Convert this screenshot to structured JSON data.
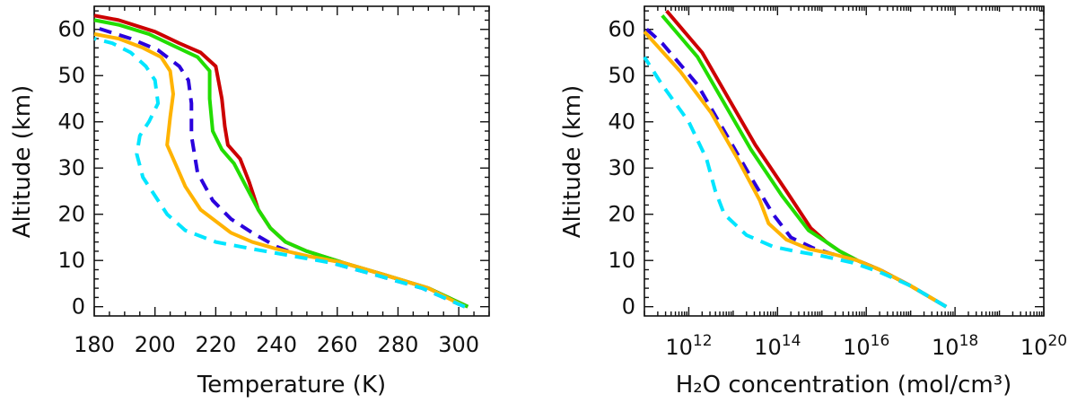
{
  "chart_data": [
    {
      "type": "line",
      "xlabel": "Temperature (K)",
      "ylabel": "Altitude (km)",
      "xscale": "linear",
      "xlim": [
        180,
        310
      ],
      "ylim": [
        -2,
        65
      ],
      "xticks": [
        180,
        200,
        220,
        240,
        260,
        280,
        300
      ],
      "xtick_labels": [
        "180",
        "200",
        "220",
        "240",
        "260",
        "280",
        "300"
      ],
      "yticks": [
        0,
        10,
        20,
        30,
        40,
        50,
        60
      ],
      "ytick_labels": [
        "0",
        "10",
        "20",
        "30",
        "40",
        "50",
        "60"
      ],
      "series": [
        {
          "name": "red",
          "color": "#cc0000",
          "style": "solid",
          "x": [
            303,
            290,
            275,
            262,
            250,
            243,
            238,
            234,
            231,
            228,
            224,
            223,
            222,
            220,
            215,
            208,
            200,
            188,
            180
          ],
          "y": [
            0,
            4,
            7,
            9.5,
            12,
            14,
            17,
            21,
            27,
            32,
            35,
            39,
            45,
            52,
            55,
            57,
            59.5,
            62,
            63
          ]
        },
        {
          "name": "green",
          "color": "#22dd00",
          "style": "solid",
          "x": [
            303,
            290,
            275,
            262,
            250,
            243,
            238,
            234,
            230,
            226,
            222,
            219,
            218,
            218,
            214,
            206,
            198,
            188,
            180
          ],
          "y": [
            0,
            4,
            7,
            9.5,
            12,
            14,
            17,
            21,
            26,
            31,
            34,
            38,
            45,
            51,
            54,
            56.5,
            59,
            61,
            62
          ]
        },
        {
          "name": "blue",
          "color": "#2a00dd",
          "style": "dashed",
          "x": [
            302,
            288,
            272,
            258,
            248,
            240,
            232,
            225,
            219,
            214,
            212,
            212,
            211,
            208,
            201,
            192,
            180
          ],
          "y": [
            0,
            4,
            7,
            9.5,
            11,
            13,
            16,
            19,
            23,
            29,
            37,
            44,
            49,
            52,
            55.5,
            58,
            60.5
          ]
        },
        {
          "name": "orange",
          "color": "#ffb300",
          "style": "solid",
          "x": [
            302,
            290,
            275,
            262,
            250,
            240,
            232,
            225,
            215,
            210,
            208,
            204,
            205,
            206,
            205,
            202,
            196,
            188,
            180
          ],
          "y": [
            0,
            4,
            7,
            9.5,
            11,
            12.5,
            14,
            16,
            21,
            26,
            29,
            35,
            41,
            46,
            51,
            54,
            56,
            58,
            59
          ]
        },
        {
          "name": "cyan",
          "color": "#00e5ff",
          "style": "dashed",
          "x": [
            302,
            288,
            272,
            258,
            245,
            232,
            220,
            210,
            204,
            200,
            196,
            194,
            195,
            198,
            201,
            200,
            197,
            192,
            186,
            180
          ],
          "y": [
            0,
            4,
            7,
            9.5,
            11,
            12.5,
            14,
            16.5,
            20,
            24,
            28,
            33,
            37,
            40,
            44,
            49,
            52,
            55,
            57,
            58
          ]
        }
      ]
    },
    {
      "type": "line",
      "xlabel": "H₂O concentration (mol/cm³)",
      "ylabel": "Altitude (km)",
      "xscale": "log10",
      "xlim": [
        11,
        20
      ],
      "ylim": [
        -2,
        65
      ],
      "xticks": [
        12,
        14,
        16,
        18,
        20
      ],
      "xtick_labels": [
        "12",
        "14",
        "16",
        "18",
        "20"
      ],
      "xtick_base": "10",
      "yticks": [
        0,
        10,
        20,
        30,
        40,
        50,
        60
      ],
      "ytick_labels": [
        "0",
        "10",
        "20",
        "30",
        "40",
        "50",
        "60"
      ],
      "series": [
        {
          "name": "red",
          "color": "#cc0000",
          "style": "solid",
          "x": [
            17.8,
            17.0,
            16.3,
            15.8,
            15.4,
            15.1,
            14.75,
            14.2,
            13.5,
            12.9,
            12.3,
            11.5
          ],
          "y": [
            0,
            4.5,
            8,
            10,
            12,
            14,
            17,
            25,
            35,
            45,
            55,
            64
          ]
        },
        {
          "name": "green",
          "color": "#22dd00",
          "style": "solid",
          "x": [
            17.8,
            17.0,
            16.3,
            15.8,
            15.4,
            15.1,
            14.7,
            14.1,
            13.4,
            12.8,
            12.2,
            11.4
          ],
          "y": [
            0,
            4.5,
            8,
            10,
            12,
            14,
            16.5,
            24,
            34,
            44,
            54,
            63
          ]
        },
        {
          "name": "blue",
          "color": "#2a00dd",
          "style": "dashed",
          "x": [
            17.8,
            17.0,
            16.3,
            15.8,
            15.2,
            14.8,
            14.3,
            13.9,
            13.4,
            12.8,
            12.2,
            11.4,
            11.0
          ],
          "y": [
            0,
            4.5,
            8,
            10,
            11.5,
            12.7,
            15,
            20,
            28,
            38,
            48,
            57,
            60.5
          ]
        },
        {
          "name": "orange",
          "color": "#ffb300",
          "style": "solid",
          "x": [
            17.8,
            17.0,
            16.3,
            15.8,
            15.2,
            14.7,
            14.2,
            13.8,
            13.6,
            13.1,
            12.5,
            11.8,
            11.0
          ],
          "y": [
            0,
            4.5,
            8,
            10,
            11.5,
            12.5,
            14.5,
            18,
            23,
            32,
            42,
            51,
            59.5
          ]
        },
        {
          "name": "cyan",
          "color": "#00e5ff",
          "style": "dashed",
          "x": [
            17.8,
            17.0,
            16.3,
            15.7,
            15.0,
            14.4,
            13.9,
            13.3,
            12.8,
            12.6,
            12.4,
            12.0,
            11.4,
            11.0
          ],
          "y": [
            0,
            4.5,
            7.5,
            9.5,
            11,
            12,
            13,
            15.5,
            20,
            25,
            32,
            40,
            48,
            54
          ]
        }
      ]
    }
  ]
}
